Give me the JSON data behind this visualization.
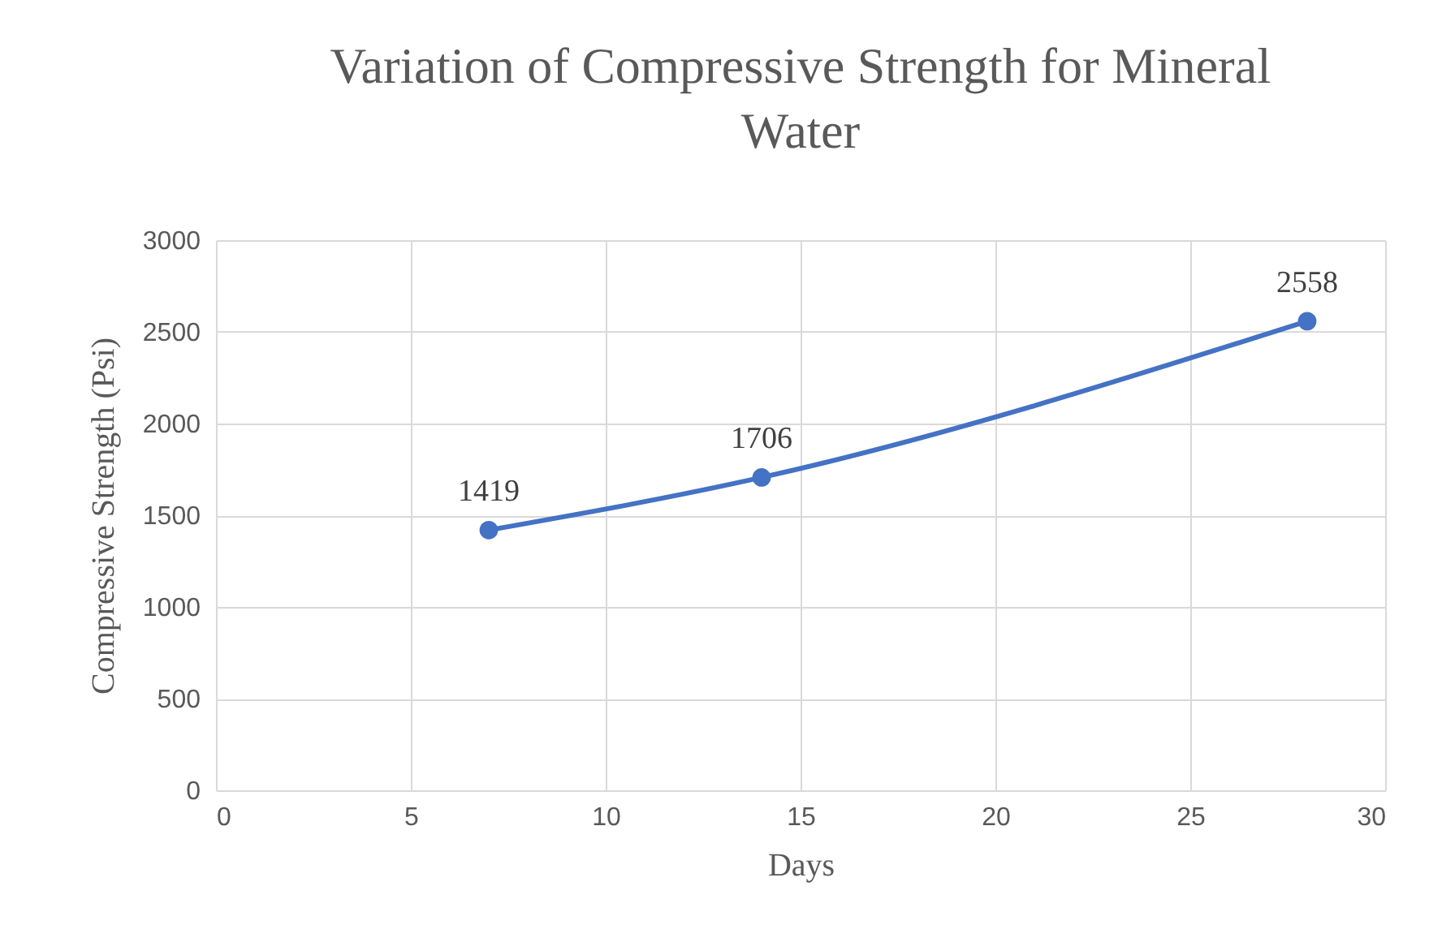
{
  "chart_data": {
    "type": "line",
    "title": "Variation of Compressive Strength for Mineral Water",
    "xlabel": "Days",
    "ylabel": "Compressive Strength (Psi)",
    "x": [
      7,
      14,
      28
    ],
    "series": [
      {
        "color": "#4472c4",
        "values": [
          1419,
          1706,
          2558
        ]
      }
    ],
    "xlim": [
      0,
      30
    ],
    "xticks": [
      0,
      5,
      10,
      15,
      20,
      25,
      30
    ],
    "ylim": [
      0,
      3000
    ],
    "yticks": [
      0,
      500,
      1000,
      1500,
      2000,
      2500,
      3000
    ],
    "grid": true,
    "marker": "circle",
    "data_labels": true
  }
}
